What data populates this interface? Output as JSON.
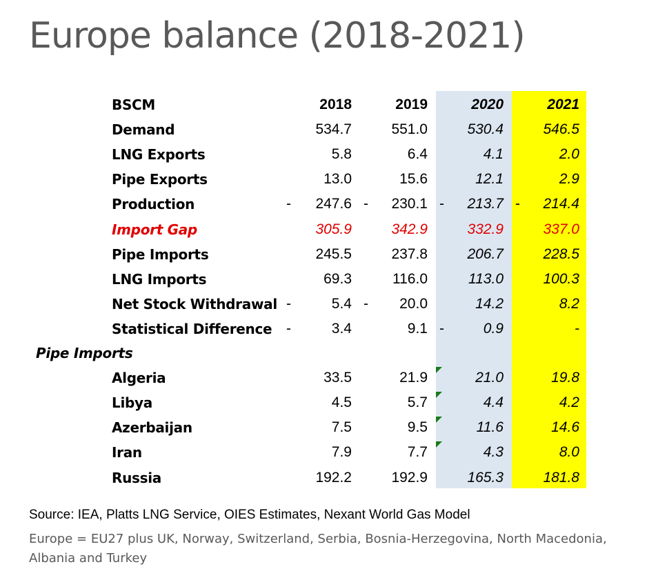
{
  "title": "Europe balance (2018-2021)",
  "table": {
    "header": {
      "label": "BSCM",
      "years": [
        "2018",
        "2019",
        "2020",
        "2021"
      ]
    },
    "rows": [
      {
        "label": "Demand",
        "values": [
          "534.7",
          "551.0",
          "530.4",
          "546.5"
        ],
        "neg": [
          "",
          "",
          "",
          ""
        ]
      },
      {
        "label": "LNG Exports",
        "values": [
          "5.8",
          "6.4",
          "4.1",
          "2.0"
        ],
        "neg": [
          "",
          "",
          "",
          ""
        ]
      },
      {
        "label": "Pipe Exports",
        "values": [
          "13.0",
          "15.6",
          "12.1",
          "2.9"
        ],
        "neg": [
          "",
          "",
          "",
          ""
        ]
      },
      {
        "label": "Production",
        "values": [
          "247.6",
          "230.1",
          "213.7",
          "214.4"
        ],
        "neg": [
          "-",
          "-",
          "-",
          "-"
        ]
      },
      {
        "label": "Import Gap",
        "values": [
          "305.9",
          "342.9",
          "332.9",
          "337.0"
        ],
        "neg": [
          "",
          "",
          "",
          ""
        ]
      },
      {
        "label": "Pipe Imports",
        "values": [
          "245.5",
          "237.8",
          "206.7",
          "228.5"
        ],
        "neg": [
          "",
          "",
          "",
          ""
        ]
      },
      {
        "label": "LNG Imports",
        "values": [
          "69.3",
          "116.0",
          "113.0",
          "100.3"
        ],
        "neg": [
          "",
          "",
          "",
          ""
        ]
      },
      {
        "label": "Net Stock Withdrawal",
        "values": [
          "5.4",
          "20.0",
          "14.2",
          "8.2"
        ],
        "neg": [
          "-",
          "-",
          "",
          ""
        ]
      },
      {
        "label": "Statistical Difference",
        "values": [
          "3.4",
          "9.1",
          "0.9",
          "-"
        ],
        "neg": [
          "-",
          "",
          "-",
          ""
        ]
      }
    ],
    "section_label": "Pipe Imports",
    "section_rows": [
      {
        "label": "Algeria",
        "values": [
          "33.5",
          "21.9",
          "21.0",
          "19.8"
        ]
      },
      {
        "label": "Libya",
        "values": [
          "4.5",
          "5.7",
          "4.4",
          "4.2"
        ]
      },
      {
        "label": "Azerbaijan",
        "values": [
          "7.5",
          "9.5",
          "11.6",
          "14.6"
        ]
      },
      {
        "label": "Iran",
        "values": [
          "7.9",
          "7.7",
          "4.3",
          "8.0"
        ]
      },
      {
        "label": "Russia",
        "values": [
          "192.2",
          "192.9",
          "165.3",
          "181.8"
        ]
      }
    ]
  },
  "colors": {
    "band_2020": "#dce6f1",
    "band_2021": "#ffff00",
    "highlight_red": "#e00000",
    "flag_green": "#1a7a1a"
  },
  "source": "Source: IEA, Platts LNG Service, OIES Estimates, Nexant World Gas Model",
  "note": "Europe = EU27 plus UK, Norway, Switzerland, Serbia, Bosnia-Herzegovina, North Macedonia, Albania and Turkey"
}
